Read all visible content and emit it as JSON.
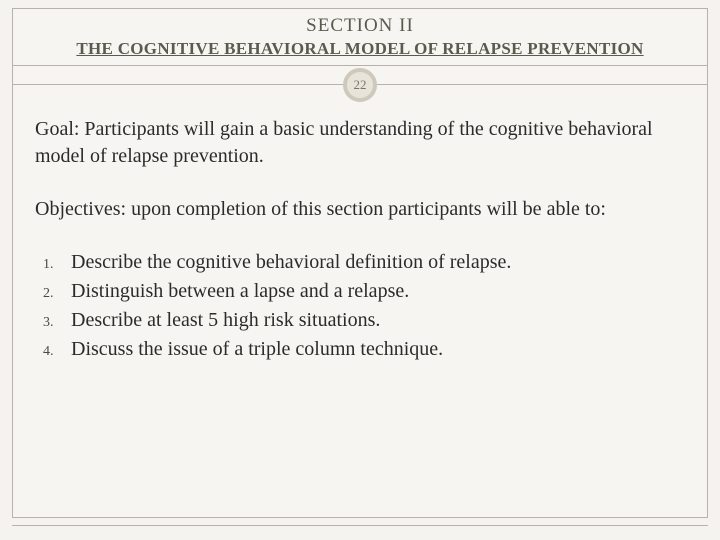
{
  "header": {
    "section_label": "SECTION II",
    "subtitle": "THE COGNITIVE BEHAVIORAL MODEL OF RELAPSE PREVENTION",
    "page_number": "22"
  },
  "content": {
    "goal": "Goal: Participants will gain a basic understanding of the cognitive behavioral model of relapse prevention.",
    "objectives_intro": "Objectives: upon completion of this section participants will be able to:",
    "list_items": [
      {
        "num": "1.",
        "text": "Describe the cognitive behavioral definition of relapse."
      },
      {
        "num": "2.",
        "text": "Distinguish between a lapse and a relapse."
      },
      {
        "num": "3.",
        "text": "Describe at least 5 high risk situations."
      },
      {
        "num": "4.",
        "text": "Discuss the issue of a triple column technique."
      }
    ]
  },
  "style": {
    "background_color": "#f5f3ef",
    "frame_border_color": "#b8b2a8",
    "title_color": "#5a5a4e",
    "body_text_color": "#2b2b2b",
    "badge_bg": "#e8e4da",
    "badge_border": "#cfc9bc",
    "title_fontsize_pt": 19,
    "subtitle_fontsize_pt": 17,
    "body_fontsize_pt": 20,
    "listnum_fontsize_pt": 14,
    "font_family": "Georgia serif"
  }
}
